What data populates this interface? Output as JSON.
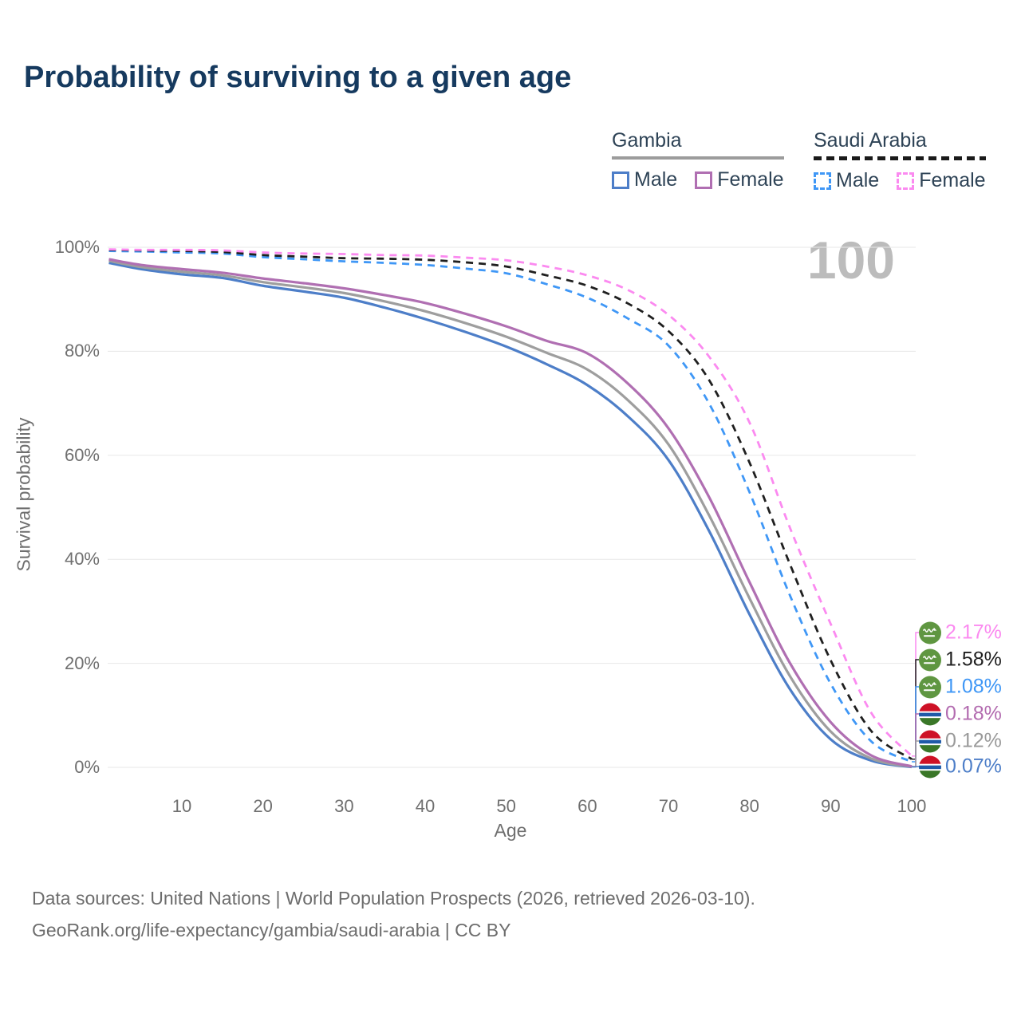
{
  "title": "Probability of surviving to a given age",
  "watermark": "100",
  "legend": {
    "groups": [
      {
        "label": "Gambia",
        "line_style": "solid",
        "underline_color": "#9c9c9c",
        "items": [
          {
            "label": "Male",
            "color": "#4d7ec8",
            "dashed": false
          },
          {
            "label": "Female",
            "color": "#b06fb2",
            "dashed": false
          }
        ]
      },
      {
        "label": "Saudi Arabia",
        "line_style": "dashed",
        "underline_color": "#1a1a1a",
        "items": [
          {
            "label": "Male",
            "color": "#3f97f6",
            "dashed": true
          },
          {
            "label": "Female",
            "color": "#fb8af0",
            "dashed": true
          }
        ]
      }
    ]
  },
  "chart_data": {
    "type": "line",
    "title": "Probability of surviving to a given age",
    "xlabel": "Age",
    "ylabel": "Survival probability",
    "xlim": [
      1,
      100
    ],
    "ylim": [
      0,
      100
    ],
    "grid": "horizontal",
    "x_ticks": [
      10,
      20,
      30,
      40,
      50,
      60,
      70,
      80,
      90,
      100
    ],
    "y_ticks": [
      {
        "value": 0,
        "label": "0%"
      },
      {
        "value": 20,
        "label": "20%"
      },
      {
        "value": 40,
        "label": "40%"
      },
      {
        "value": 60,
        "label": "60%"
      },
      {
        "value": 80,
        "label": "80%"
      },
      {
        "value": 100,
        "label": "100%"
      }
    ],
    "x": [
      1,
      5,
      10,
      15,
      20,
      25,
      30,
      35,
      40,
      45,
      50,
      55,
      60,
      65,
      70,
      75,
      80,
      85,
      90,
      95,
      100
    ],
    "series": [
      {
        "name": "Gambia Male",
        "country": "Gambia",
        "sex": "Male",
        "color": "#4d7ec8",
        "dashed": false,
        "values": [
          97.0,
          95.8,
          94.8,
          94.1,
          92.6,
          91.5,
          90.3,
          88.4,
          86.2,
          83.7,
          80.9,
          77.5,
          73.5,
          67.5,
          59.1,
          45.5,
          29.4,
          15.0,
          5.4,
          1.3,
          0.07
        ],
        "end_label": "0.07%"
      },
      {
        "name": "Gambia Both sexes",
        "country": "Gambia",
        "sex": "Both",
        "color": "#9e9e9e",
        "dashed": false,
        "values": [
          97.4,
          96.2,
          95.3,
          94.6,
          93.3,
          92.3,
          91.2,
          89.6,
          87.7,
          85.4,
          82.8,
          79.7,
          76.5,
          70.6,
          62.1,
          48.5,
          32.5,
          17.5,
          6.9,
          1.7,
          0.12
        ],
        "end_label": "0.12%"
      },
      {
        "name": "Gambia Female",
        "country": "Gambia",
        "sex": "Female",
        "color": "#b06fb2",
        "dashed": false,
        "values": [
          97.7,
          96.6,
          95.8,
          95.1,
          94.0,
          93.1,
          92.1,
          90.8,
          89.3,
          87.2,
          84.8,
          82.0,
          79.6,
          73.8,
          65.2,
          52.0,
          35.6,
          20.0,
          8.7,
          2.3,
          0.18
        ],
        "end_label": "0.18%"
      },
      {
        "name": "Saudi Arabia Male",
        "country": "Saudi Arabia",
        "sex": "Male",
        "color": "#3f97f6",
        "dashed": true,
        "values": [
          99.3,
          99.2,
          99.0,
          98.8,
          98.1,
          97.7,
          97.3,
          97.0,
          96.6,
          95.9,
          95.0,
          92.9,
          90.3,
          86.3,
          81.1,
          70.0,
          52.9,
          33.0,
          16.1,
          5.0,
          1.08
        ],
        "end_label": "1.08%"
      },
      {
        "name": "Saudi Arabia Both sexes",
        "country": "Saudi Arabia",
        "sex": "Both",
        "color": "#1f1f1f",
        "dashed": true,
        "values": [
          99.5,
          99.4,
          99.3,
          99.1,
          98.5,
          98.2,
          97.9,
          97.8,
          97.6,
          97.1,
          96.3,
          94.6,
          92.6,
          89.2,
          83.9,
          74.5,
          58.6,
          39.0,
          20.6,
          7.0,
          1.58
        ],
        "end_label": "1.58%"
      },
      {
        "name": "Saudi Arabia Female",
        "country": "Saudi Arabia",
        "sex": "Female",
        "color": "#fb8af0",
        "dashed": true,
        "values": [
          99.6,
          99.5,
          99.5,
          99.4,
          99.0,
          98.8,
          98.7,
          98.5,
          98.4,
          98.0,
          97.5,
          96.3,
          94.6,
          91.8,
          87.0,
          79.0,
          66.3,
          46.0,
          27.6,
          10.5,
          2.17
        ],
        "end_label": "2.17%"
      }
    ]
  },
  "end_labels": [
    {
      "value": "2.17%",
      "color": "#fb8af0",
      "flag": "saudi-arabia",
      "series": "Saudi Arabia Female"
    },
    {
      "value": "1.58%",
      "color": "#1f1f1f",
      "flag": "saudi-arabia",
      "series": "Saudi Arabia Both sexes"
    },
    {
      "value": "1.08%",
      "color": "#3f97f6",
      "flag": "saudi-arabia",
      "series": "Saudi Arabia Male"
    },
    {
      "value": "0.18%",
      "color": "#b36cb0",
      "flag": "gambia",
      "series": "Gambia Female"
    },
    {
      "value": "0.12%",
      "color": "#9a9a9a",
      "flag": "gambia",
      "series": "Gambia Both sexes"
    },
    {
      "value": "0.07%",
      "color": "#4d7ec8",
      "flag": "gambia",
      "series": "Gambia Male"
    }
  ],
  "footer": {
    "line1": "Data sources: United Nations | World Population Prospects (2026, retrieved 2026-03-10).",
    "line2": "GeoRank.org/life-expectancy/gambia/saudi-arabia | CC BY"
  },
  "colors": {
    "title_text": "#163a5f",
    "axis_text": "#6f6f6f",
    "gridline": "#e7e7e7",
    "watermark": "#bcbcbc",
    "gambia_flag": {
      "red": "#ce1126",
      "blue": "#1f5aa8",
      "green": "#3a7728"
    },
    "saudi_flag_green": "#5f9641"
  }
}
